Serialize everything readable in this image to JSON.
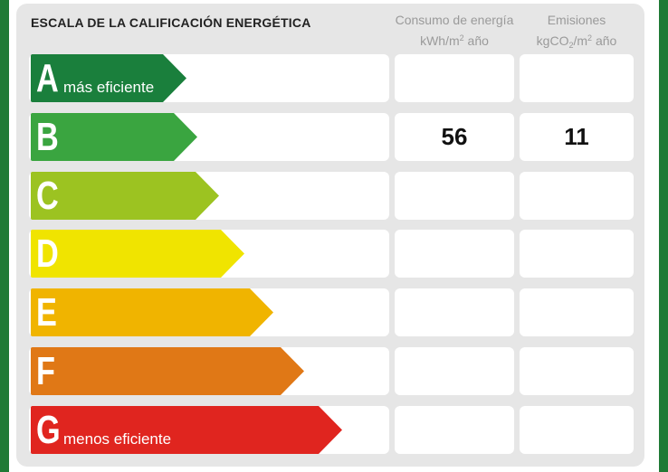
{
  "title": "ESCALA DE LA CALIFICACIÓN ENERGÉTICA",
  "columns": {
    "consumo": {
      "line1": "Consumo de energía",
      "unit_a": "kWh/m",
      "unit_sup": "2",
      "unit_b": " año"
    },
    "emisiones": {
      "line1": "Emisiones",
      "unit_a": "kgCO",
      "unit_sub": "2",
      "unit_c": "/m",
      "unit_sup": "2",
      "unit_b": " año"
    }
  },
  "ratings": [
    {
      "letter": "A",
      "label": "más eficiente",
      "color": "#1a7f3c",
      "consumo": "",
      "emisiones": ""
    },
    {
      "letter": "B",
      "label": "",
      "color": "#3aa540",
      "consumo": "56",
      "emisiones": "11"
    },
    {
      "letter": "C",
      "label": "",
      "color": "#9cc321",
      "consumo": "",
      "emisiones": ""
    },
    {
      "letter": "D",
      "label": "",
      "color": "#f0e400",
      "consumo": "",
      "emisiones": ""
    },
    {
      "letter": "E",
      "label": "",
      "color": "#f0b400",
      "consumo": "",
      "emisiones": ""
    },
    {
      "letter": "F",
      "label": "",
      "color": "#e07816",
      "consumo": "",
      "emisiones": ""
    },
    {
      "letter": "G",
      "label": "menos eficiente",
      "color": "#e0251f",
      "consumo": "",
      "emisiones": ""
    }
  ]
}
